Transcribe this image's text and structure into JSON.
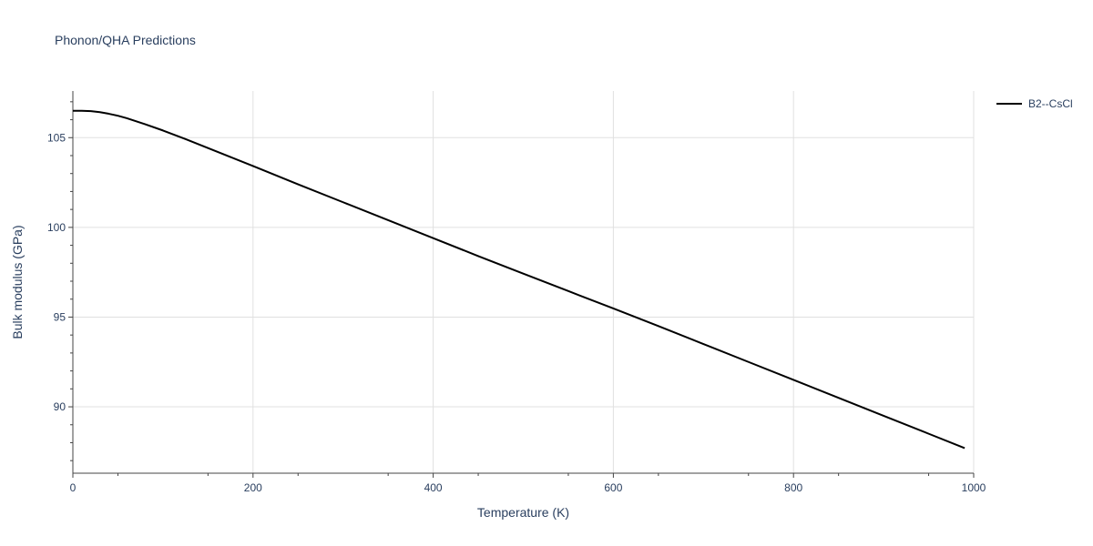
{
  "chart_data": {
    "type": "line",
    "title": "Phonon/QHA Predictions",
    "xlabel": "Temperature (K)",
    "ylabel": "Bulk modulus (GPa)",
    "xlim": [
      0,
      1000
    ],
    "ylim": [
      86.3,
      107.6
    ],
    "x_ticks": [
      0,
      200,
      400,
      600,
      800,
      1000
    ],
    "x_tick_labels": [
      "0",
      "200",
      "400",
      "600",
      "800",
      "1000"
    ],
    "y_ticks": [
      90,
      95,
      100,
      105
    ],
    "y_tick_labels": [
      "90",
      "95",
      "100",
      "105"
    ],
    "grid": true,
    "legend_position": "top-right",
    "series": [
      {
        "name": "B2--CsCl",
        "color": "#000000",
        "x": [
          0,
          10,
          20,
          30,
          40,
          50,
          60,
          80,
          100,
          125,
          150,
          175,
          200,
          250,
          300,
          350,
          400,
          450,
          500,
          550,
          600,
          650,
          700,
          750,
          800,
          850,
          900,
          950,
          990
        ],
        "y": [
          106.5,
          106.5,
          106.48,
          106.42,
          106.33,
          106.22,
          106.08,
          105.75,
          105.4,
          104.92,
          104.42,
          103.92,
          103.42,
          102.4,
          101.4,
          100.4,
          99.4,
          98.4,
          97.42,
          96.45,
          95.48,
          94.5,
          93.5,
          92.5,
          91.5,
          90.5,
          89.5,
          88.5,
          87.7
        ]
      }
    ]
  }
}
